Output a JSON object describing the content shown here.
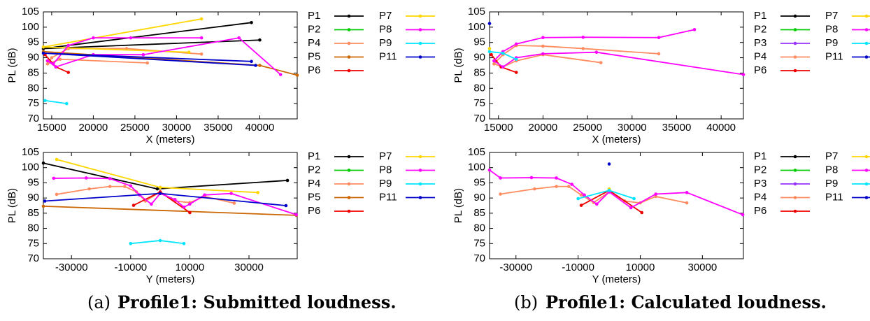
{
  "chart_data": [
    {
      "type": "line",
      "xlabel": "X (meters)",
      "ylabel": "PL (dB)",
      "xlim": [
        14000,
        44500
      ],
      "ylim": [
        70,
        105
      ],
      "xticks": [
        15000,
        20000,
        25000,
        30000,
        35000,
        40000
      ],
      "yticks": [
        70,
        75,
        80,
        85,
        90,
        95,
        100,
        105
      ],
      "series": [
        {
          "name": "P1",
          "color": "#000000",
          "x": [
            39000,
            14000,
            40000
          ],
          "values": [
            101.5,
            93,
            95.8
          ]
        },
        {
          "name": "P2",
          "color": "#00cc00",
          "x": [],
          "values": []
        },
        {
          "name": "P4",
          "color": "#ff8c60",
          "x": [
            33000,
            24000,
            17000,
            15000,
            14500,
            16000,
            26500
          ],
          "values": [
            91.2,
            93,
            93,
            90,
            88,
            89.5,
            88.3
          ]
        },
        {
          "name": "P5",
          "color": "#cc6600",
          "x": [
            14000,
            40000,
            44500
          ],
          "values": [
            92,
            87.5,
            84.3
          ]
        },
        {
          "name": "P6",
          "color": "#ee0000",
          "x": [
            14200,
            15500,
            17000
          ],
          "values": [
            91,
            87,
            85.2
          ]
        },
        {
          "name": "P7",
          "color": "#ffd700",
          "x": [
            33000,
            14000,
            31500
          ],
          "values": [
            102.7,
            93.5,
            91.8
          ]
        },
        {
          "name": "P8",
          "color": "#ff00ff",
          "x": [
            42500,
            37500,
            26000,
            20000,
            15500,
            14500,
            15200,
            17000,
            20000,
            24500,
            33000
          ],
          "values": [
            84.5,
            96.5,
            91,
            91,
            87,
            89,
            88,
            94,
            96.5,
            96.5,
            96.5
          ]
        },
        {
          "name": "P9",
          "color": "#00e5ff",
          "x": [
            14200,
            16800
          ],
          "values": [
            76,
            75
          ]
        },
        {
          "name": "P11",
          "color": "#0000cc",
          "x": [
            39000,
            14000,
            39500
          ],
          "values": [
            88.8,
            91.5,
            87.5
          ]
        }
      ]
    },
    {
      "type": "line",
      "xlabel": "Y (meters)",
      "ylabel": "PL (dB)",
      "xlim": [
        -39500,
        46300
      ],
      "ylim": [
        70,
        105
      ],
      "xticks": [
        -30000,
        -10000,
        10000,
        30000
      ],
      "yticks": [
        70,
        75,
        80,
        85,
        90,
        95,
        100,
        105
      ],
      "series": [
        {
          "name": "P1",
          "color": "#000000",
          "x": [
            -39500,
            -1000,
            43000
          ],
          "values": [
            101.5,
            93,
            95.8
          ]
        },
        {
          "name": "P2",
          "color": "#00cc00",
          "x": [],
          "values": []
        },
        {
          "name": "P4",
          "color": "#ff8c60",
          "x": [
            -35000,
            -24000,
            -17000,
            -12000,
            -8000,
            -5000,
            0,
            5000,
            10000,
            15000,
            25000
          ],
          "values": [
            91.2,
            93,
            93.8,
            93.8,
            92,
            89,
            92,
            89,
            88.5,
            90.5,
            88.3
          ]
        },
        {
          "name": "P5",
          "color": "#cc6600",
          "x": [
            -39500,
            46000
          ],
          "values": [
            87.3,
            84.3
          ]
        },
        {
          "name": "P6",
          "color": "#ee0000",
          "x": [
            -9000,
            0,
            10000
          ],
          "values": [
            87.6,
            92,
            85.2
          ]
        },
        {
          "name": "P7",
          "color": "#ffd700",
          "x": [
            -35000,
            0,
            33000
          ],
          "values": [
            102.7,
            93.5,
            91.8
          ]
        },
        {
          "name": "P8",
          "color": "#ff00ff",
          "x": [
            -36000,
            -25000,
            -17000,
            -10000,
            -7000,
            -3000,
            0,
            5000,
            8000,
            10000,
            15000,
            24000,
            46000
          ],
          "values": [
            96.5,
            96.6,
            96.4,
            94,
            91,
            88,
            91.5,
            89.5,
            87,
            88,
            91,
            91.5,
            84.5
          ]
        },
        {
          "name": "P9",
          "color": "#00e5ff",
          "x": [
            -10000,
            0,
            8000
          ],
          "values": [
            75,
            76,
            75
          ]
        },
        {
          "name": "P11",
          "color": "#0000cc",
          "x": [
            -39000,
            0,
            42500
          ],
          "values": [
            89,
            91.5,
            87.5
          ]
        }
      ]
    },
    {
      "type": "line",
      "xlabel": "X (meters)",
      "ylabel": "PL (dB)",
      "xlim": [
        14000,
        42500
      ],
      "ylim": [
        70,
        105
      ],
      "xticks": [
        15000,
        20000,
        25000,
        30000,
        35000,
        40000
      ],
      "yticks": [
        70,
        75,
        80,
        85,
        90,
        95,
        100,
        105
      ],
      "series": [
        {
          "name": "P1",
          "color": "#000000",
          "x": [],
          "values": []
        },
        {
          "name": "P2",
          "color": "#00cc00",
          "x": [],
          "values": []
        },
        {
          "name": "P3",
          "color": "#9933ff",
          "x": [],
          "values": []
        },
        {
          "name": "P4",
          "color": "#ff8c60",
          "x": [
            33000,
            24500,
            20000,
            17000,
            15500,
            14500,
            15500,
            17000,
            20000,
            26500
          ],
          "values": [
            91.3,
            93,
            93.8,
            94,
            91,
            88,
            87,
            89,
            91,
            88.4
          ]
        },
        {
          "name": "P6",
          "color": "#ee0000",
          "x": [
            14200,
            15300,
            17000
          ],
          "values": [
            91,
            87,
            85.2
          ]
        },
        {
          "name": "P7",
          "color": "#ffd700",
          "x": [
            14000
          ],
          "values": [
            93
          ]
        },
        {
          "name": "P8",
          "color": "#ff00ff",
          "x": [
            37000,
            33000,
            24500,
            20000,
            17000,
            15500,
            14500,
            15500,
            17000,
            20000,
            26000,
            42500
          ],
          "values": [
            99.2,
            96.6,
            96.7,
            96.6,
            94.5,
            92,
            89,
            87,
            90,
            91.3,
            91.8,
            84.5
          ]
        },
        {
          "name": "P9",
          "color": "#00e5ff",
          "x": [
            14000,
            15500,
            17000
          ],
          "values": [
            92,
            91.5,
            89.5
          ]
        },
        {
          "name": "P11",
          "color": "#0000cc",
          "x": [
            14000
          ],
          "values": [
            101.2
          ]
        }
      ]
    },
    {
      "type": "line",
      "xlabel": "Y (meters)",
      "ylabel": "PL (dB)",
      "xlim": [
        -38500,
        43200
      ],
      "ylim": [
        70,
        105
      ],
      "xticks": [
        -30000,
        -10000,
        10000,
        30000
      ],
      "yticks": [
        70,
        75,
        80,
        85,
        90,
        95,
        100,
        105
      ],
      "series": [
        {
          "name": "P1",
          "color": "#000000",
          "x": [],
          "values": []
        },
        {
          "name": "P2",
          "color": "#00cc00",
          "x": [],
          "values": []
        },
        {
          "name": "P3",
          "color": "#9933ff",
          "x": [],
          "values": []
        },
        {
          "name": "P4",
          "color": "#ff8c60",
          "x": [
            -35000,
            -24000,
            -17000,
            -13000,
            -9000,
            -5000,
            0,
            5000,
            10000,
            15000,
            25000
          ],
          "values": [
            91.3,
            93,
            93.8,
            93.8,
            91,
            88.5,
            92,
            89,
            88.4,
            90.5,
            88.4
          ]
        },
        {
          "name": "P6",
          "color": "#ee0000",
          "x": [
            -9000,
            0,
            10500
          ],
          "values": [
            87.6,
            92.5,
            85.2
          ]
        },
        {
          "name": "P7",
          "color": "#ffd700",
          "x": [
            0
          ],
          "values": [
            93
          ]
        },
        {
          "name": "P8",
          "color": "#ff00ff",
          "x": [
            -38500,
            -35000,
            -25000,
            -17000,
            -12000,
            -8000,
            -4000,
            0,
            7000,
            15000,
            25000,
            43000
          ],
          "values": [
            99.2,
            96.6,
            96.7,
            96.6,
            94.5,
            91,
            88,
            92,
            86.8,
            91.3,
            91.8,
            84.5
          ]
        },
        {
          "name": "P9",
          "color": "#00e5ff",
          "x": [
            -10000,
            0,
            8000
          ],
          "values": [
            89.8,
            92.5,
            89.8
          ]
        },
        {
          "name": "P11",
          "color": "#0000cc",
          "x": [
            0
          ],
          "values": [
            101.2
          ]
        }
      ]
    }
  ],
  "captions": [
    {
      "label": "(a)",
      "text": "Profile1: Submitted loudness."
    },
    {
      "label": "(b)",
      "text": "Profile1: Calculated loudness."
    }
  ]
}
